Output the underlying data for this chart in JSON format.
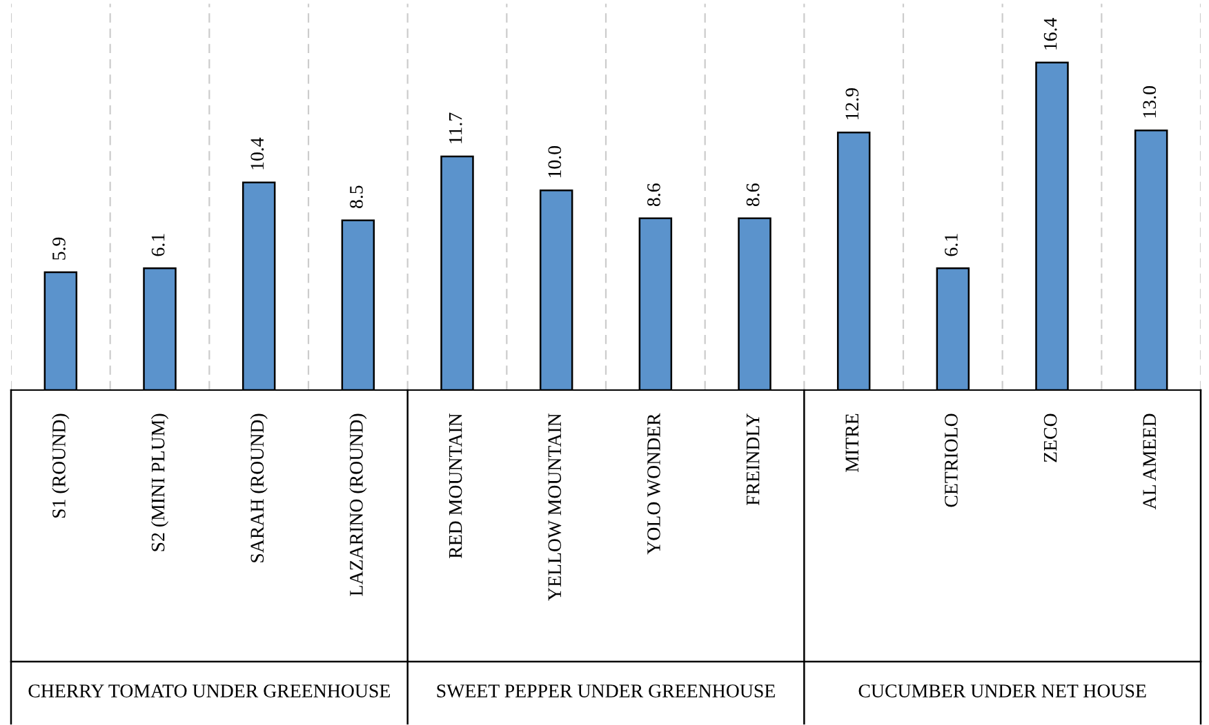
{
  "chart_data": {
    "type": "bar",
    "categories": [
      "S1 (ROUND)",
      "S2 (MINI PLUM)",
      "SARAH (ROUND)",
      "LAZARINO (ROUND)",
      "RED MOUNTAIN",
      "YELLOW MOUNTAIN",
      "YOLO WONDER",
      "FREINDLY",
      "MITRE",
      "CETRIOLO",
      "ZECO",
      "AL AMEED"
    ],
    "values": [
      5.9,
      6.1,
      10.4,
      8.5,
      11.7,
      10.0,
      8.6,
      8.6,
      12.9,
      6.1,
      16.4,
      13.0
    ],
    "value_labels": [
      "5.9",
      "6.1",
      "10.4",
      "8.5",
      "11.7",
      "10.0",
      "8.6",
      "8.6",
      "12.9",
      "6.1",
      "16.4",
      "13.0"
    ],
    "color": "#5b93cc",
    "grid": "x",
    "annotations": [
      "CHERRY TOMATO UNDER GREENHOUSE",
      "SWEET PEPPER UNDER GREENHOUSE",
      "CUCUMBER UNDER NET HOUSE"
    ]
  }
}
